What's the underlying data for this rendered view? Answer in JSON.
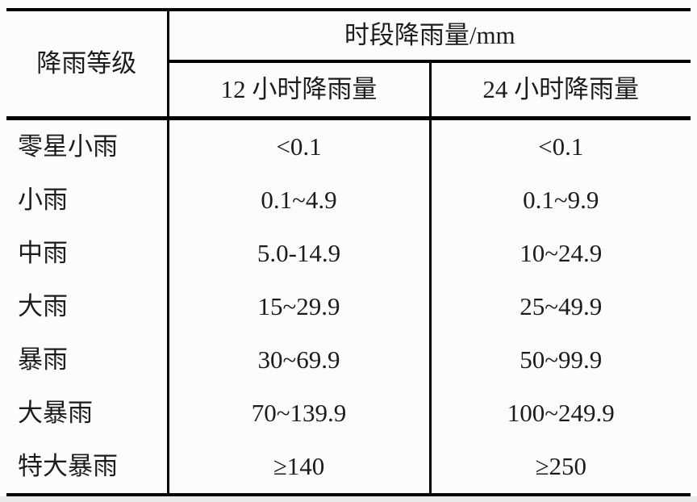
{
  "table": {
    "title_semantic": "rainfall-intensity-classification",
    "header": {
      "level_label": "降雨等级",
      "group_label": "时段降雨量/mm",
      "col_12h_label": "12 小时降雨量",
      "col_24h_label": "24 小时降雨量"
    },
    "rows": [
      {
        "level": "零星小雨",
        "h12": "<0.1",
        "h24": "<0.1"
      },
      {
        "level": "小雨",
        "h12": "0.1~4.9",
        "h24": "0.1~9.9"
      },
      {
        "level": "中雨",
        "h12": "5.0-14.9",
        "h24": "10~24.9"
      },
      {
        "level": "大雨",
        "h12": "15~29.9",
        "h24": "25~49.9"
      },
      {
        "level": "暴雨",
        "h12": "30~69.9",
        "h24": "50~99.9"
      },
      {
        "level": "大暴雨",
        "h12": "70~139.9",
        "h24": "100~249.9"
      },
      {
        "level": "特大暴雨",
        "h12": "≥140",
        "h24": "≥250"
      }
    ],
    "colors": {
      "border": "#000000",
      "text": "#1c1c1c",
      "background": "#fcfcfc"
    }
  }
}
